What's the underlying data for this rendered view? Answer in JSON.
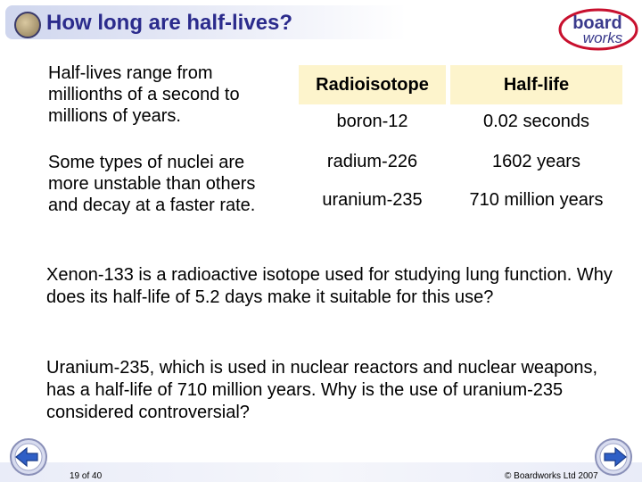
{
  "title": "How long are half-lives?",
  "logo": {
    "line1": "board",
    "line2": "works"
  },
  "intro_paragraphs": [
    "Half-lives range from millionths of a second to millions of years.",
    "Some types of nuclei are more unstable than others and decay at a faster rate."
  ],
  "table": {
    "headers": [
      "Radioisotope",
      "Half-life"
    ],
    "rows": [
      {
        "isotope": "boron-12",
        "half_life": "0.02 seconds"
      },
      {
        "isotope": "radium-226",
        "half_life": "1602 years"
      },
      {
        "isotope": "uranium-235",
        "half_life": "710 million years"
      }
    ]
  },
  "questions": [
    "Xenon-133 is a radioactive isotope used for studying lung function. Why does its half-life of 5.2 days make it suitable for this use?",
    "Uranium-235, which is used in nuclear reactors and nuclear weapons, has a half-life of 710 million years. Why is the use of uranium-235 considered controversial?"
  ],
  "footer": {
    "page_number": "19 of 40",
    "copyright": "© Boardworks Ltd 2007"
  },
  "colors": {
    "title_text": "#2b2b8c",
    "header_cell_bg": "#fdf4cc",
    "logo_blue": "#3a3a8c",
    "logo_red": "#c8102e"
  }
}
